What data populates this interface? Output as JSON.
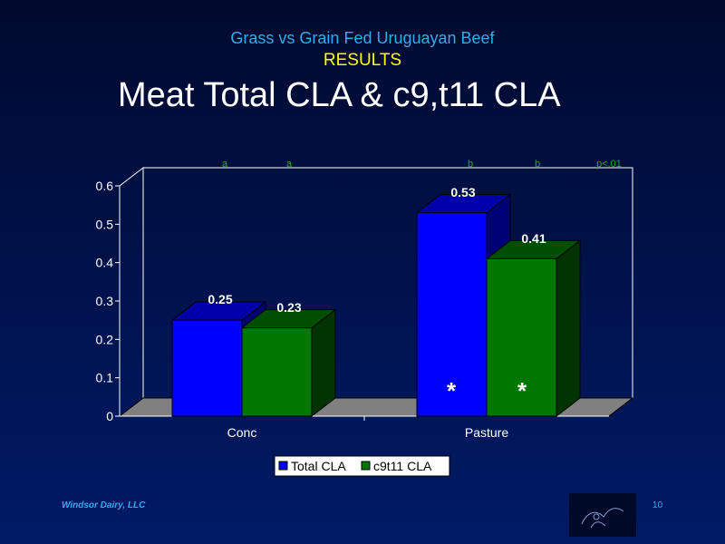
{
  "slide": {
    "subtitle": "Grass vs Grain Fed Uruguayan Beef",
    "results_label": "RESULTS",
    "title": "Meat Total CLA & c9,t11 CLA",
    "footer": "Windsor Dairy, LLC",
    "page_number": "10"
  },
  "colors": {
    "total_cla": "#0000ff",
    "c9t11_cla": "#007700",
    "subtitle": "#33aaee",
    "results": "#ffff00"
  },
  "chart_data": {
    "type": "bar",
    "categories": [
      "Conc",
      "Pasture"
    ],
    "series": [
      {
        "name": "Total CLA",
        "values": [
          0.25,
          0.53
        ]
      },
      {
        "name": "c9t11 CLA",
        "values": [
          0.23,
          0.41
        ]
      }
    ],
    "ylim": [
      0,
      0.6
    ],
    "yticks": [
      "0",
      "0.1",
      "0.2",
      "0.3",
      "0.4",
      "0.5",
      "0.6"
    ],
    "letters": [
      "a",
      "a",
      "b",
      "b"
    ],
    "significance_label": "p<.01",
    "significance_marks": [
      "*",
      "*"
    ],
    "legend_position": "bottom",
    "grid": false
  }
}
